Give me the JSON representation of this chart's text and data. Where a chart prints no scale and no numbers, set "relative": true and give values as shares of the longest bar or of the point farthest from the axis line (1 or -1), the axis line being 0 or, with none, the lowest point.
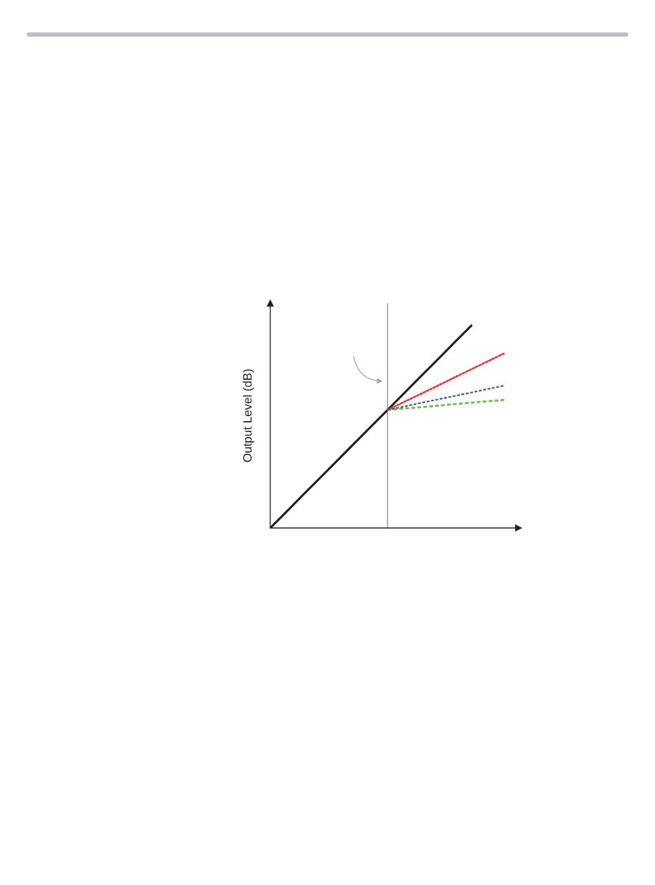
{
  "chart_data": {
    "type": "line",
    "relative": true,
    "ylabel": "Output Level (dB)",
    "categories": [
      null,
      null,
      null,
      null,
      null,
      null,
      null,
      null,
      null,
      null,
      null,
      null,
      null,
      null,
      null
    ],
    "series": [
      {
        "color": "#231f20",
        "line_style": "solid",
        "values": [
          0,
          0.083,
          0.167,
          0.25,
          0.333,
          0.417,
          0.5,
          0.583,
          0.667,
          0.75,
          0.833,
          0.917,
          1,
          null,
          null
        ]
      },
      {
        "color": "#ee2a2e",
        "line_style": "dotted",
        "values": [
          null,
          null,
          null,
          null,
          null,
          null,
          null,
          0.583,
          0.623,
          0.663,
          0.703,
          0.744,
          0.784,
          0.824,
          0.864
        ]
      },
      {
        "color": "#3450a0",
        "line_style": "dashed",
        "values": [
          null,
          null,
          null,
          null,
          null,
          null,
          null,
          0.583,
          0.6,
          0.618,
          0.635,
          0.652,
          0.669,
          0.687,
          0.704
        ]
      },
      {
        "color": "#6cbf4a",
        "line_style": "dashed",
        "values": [
          null,
          null,
          null,
          null,
          null,
          null,
          null,
          0.583,
          0.59,
          0.597,
          0.604,
          0.612,
          0.619,
          0.626,
          0.633
        ]
      }
    ],
    "grid": false,
    "legend": false
  }
}
